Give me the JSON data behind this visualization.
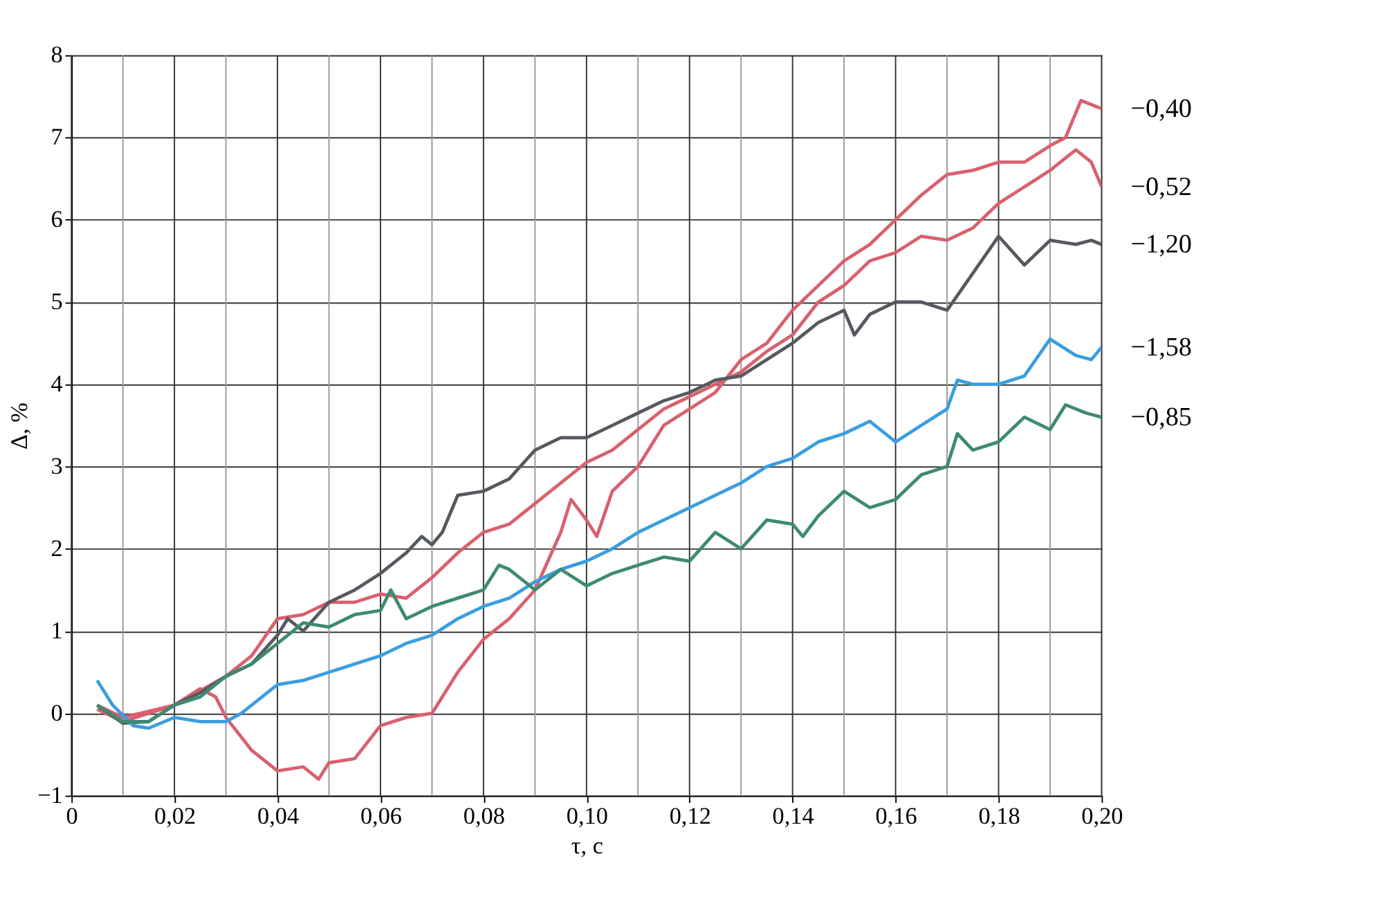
{
  "chart_data": {
    "type": "line",
    "xlabel": "τ, c",
    "ylabel": "Δ, %",
    "xlim": [
      0,
      0.2
    ],
    "ylim": [
      -1,
      8
    ],
    "xticks": [
      {
        "value": 0,
        "label": "0"
      },
      {
        "value": 0.01,
        "label": null
      },
      {
        "value": 0.02,
        "label": "0,02"
      },
      {
        "value": 0.03,
        "label": null
      },
      {
        "value": 0.04,
        "label": "0,04"
      },
      {
        "value": 0.05,
        "label": null
      },
      {
        "value": 0.06,
        "label": "0,06"
      },
      {
        "value": 0.07,
        "label": null
      },
      {
        "value": 0.08,
        "label": "0,08"
      },
      {
        "value": 0.09,
        "label": null
      },
      {
        "value": 0.1,
        "label": "0,10"
      },
      {
        "value": 0.11,
        "label": null
      },
      {
        "value": 0.12,
        "label": "0,12"
      },
      {
        "value": 0.13,
        "label": null
      },
      {
        "value": 0.14,
        "label": "0,14"
      },
      {
        "value": 0.15,
        "label": null
      },
      {
        "value": 0.16,
        "label": "0,16"
      },
      {
        "value": 0.17,
        "label": null
      },
      {
        "value": 0.18,
        "label": "0,18"
      },
      {
        "value": 0.19,
        "label": null
      },
      {
        "value": 0.2,
        "label": "0,20"
      }
    ],
    "yticks": [
      {
        "value": -1,
        "label": "−1"
      },
      0,
      1,
      2,
      3,
      4,
      5,
      6,
      7,
      8
    ],
    "grid": true,
    "legend": false,
    "marker": "none",
    "line_style": "solid",
    "series": [
      {
        "name": "−0,40",
        "color": "#d9606e",
        "x": [
          0.005,
          0.01,
          0.015,
          0.02,
          0.025,
          0.028,
          0.03,
          0.035,
          0.04,
          0.045,
          0.048,
          0.05,
          0.055,
          0.06,
          0.065,
          0.07,
          0.075,
          0.08,
          0.085,
          0.09,
          0.095,
          0.097,
          0.1,
          0.102,
          0.105,
          0.11,
          0.115,
          0.12,
          0.125,
          0.13,
          0.135,
          0.14,
          0.145,
          0.15,
          0.155,
          0.16,
          0.165,
          0.17,
          0.175,
          0.18,
          0.185,
          0.19,
          0.193,
          0.196,
          0.2
        ],
        "values": [
          0.05,
          -0.1,
          0.0,
          0.1,
          0.3,
          0.2,
          -0.05,
          -0.45,
          -0.7,
          -0.65,
          -0.8,
          -0.6,
          -0.55,
          -0.15,
          -0.05,
          0.0,
          0.5,
          0.9,
          1.15,
          1.5,
          2.2,
          2.6,
          2.35,
          2.15,
          2.7,
          3.0,
          3.5,
          3.7,
          3.9,
          4.3,
          4.5,
          4.9,
          5.2,
          5.5,
          5.7,
          6.0,
          6.3,
          6.55,
          6.6,
          6.7,
          6.7,
          6.9,
          7.0,
          7.45,
          7.35
        ]
      },
      {
        "name": "−0,52",
        "color": "#d9606e",
        "x": [
          0.005,
          0.01,
          0.02,
          0.03,
          0.035,
          0.04,
          0.045,
          0.05,
          0.055,
          0.06,
          0.065,
          0.07,
          0.075,
          0.08,
          0.085,
          0.09,
          0.095,
          0.1,
          0.105,
          0.11,
          0.115,
          0.12,
          0.125,
          0.13,
          0.135,
          0.14,
          0.145,
          0.15,
          0.155,
          0.16,
          0.165,
          0.17,
          0.175,
          0.18,
          0.185,
          0.19,
          0.195,
          0.198,
          0.2
        ],
        "values": [
          0.1,
          -0.05,
          0.1,
          0.45,
          0.7,
          1.15,
          1.2,
          1.35,
          1.35,
          1.45,
          1.4,
          1.65,
          1.95,
          2.2,
          2.3,
          2.55,
          2.8,
          3.05,
          3.2,
          3.45,
          3.7,
          3.85,
          4.0,
          4.15,
          4.4,
          4.6,
          5.0,
          5.2,
          5.5,
          5.6,
          5.8,
          5.75,
          5.9,
          6.2,
          6.4,
          6.6,
          6.85,
          6.7,
          6.4
        ]
      },
      {
        "name": "−1,20",
        "color": "#555a60",
        "x": [
          0.005,
          0.01,
          0.015,
          0.02,
          0.025,
          0.03,
          0.035,
          0.04,
          0.042,
          0.045,
          0.05,
          0.055,
          0.06,
          0.065,
          0.068,
          0.07,
          0.072,
          0.075,
          0.08,
          0.085,
          0.09,
          0.095,
          0.1,
          0.105,
          0.11,
          0.115,
          0.12,
          0.125,
          0.13,
          0.135,
          0.14,
          0.145,
          0.15,
          0.152,
          0.155,
          0.16,
          0.165,
          0.17,
          0.175,
          0.18,
          0.185,
          0.19,
          0.195,
          0.198,
          0.2
        ],
        "values": [
          0.1,
          -0.12,
          -0.1,
          0.1,
          0.25,
          0.45,
          0.6,
          0.95,
          1.15,
          1.0,
          1.35,
          1.5,
          1.7,
          1.95,
          2.15,
          2.05,
          2.2,
          2.65,
          2.7,
          2.85,
          3.2,
          3.35,
          3.35,
          3.5,
          3.65,
          3.8,
          3.9,
          4.05,
          4.1,
          4.3,
          4.5,
          4.75,
          4.9,
          4.6,
          4.85,
          5.0,
          5.0,
          4.9,
          5.35,
          5.8,
          5.45,
          5.75,
          5.7,
          5.75,
          5.7
        ]
      },
      {
        "name": "−1,58",
        "color": "#3a9ee0",
        "x": [
          0.005,
          0.008,
          0.012,
          0.015,
          0.02,
          0.025,
          0.03,
          0.033,
          0.04,
          0.045,
          0.05,
          0.055,
          0.06,
          0.065,
          0.07,
          0.075,
          0.08,
          0.085,
          0.09,
          0.095,
          0.1,
          0.105,
          0.11,
          0.115,
          0.12,
          0.125,
          0.13,
          0.135,
          0.14,
          0.145,
          0.15,
          0.155,
          0.16,
          0.165,
          0.17,
          0.172,
          0.175,
          0.18,
          0.185,
          0.19,
          0.195,
          0.198,
          0.2
        ],
        "values": [
          0.4,
          0.1,
          -0.15,
          -0.18,
          -0.05,
          -0.1,
          -0.1,
          0.0,
          0.35,
          0.4,
          0.5,
          0.6,
          0.7,
          0.85,
          0.95,
          1.15,
          1.3,
          1.4,
          1.6,
          1.75,
          1.85,
          2.0,
          2.2,
          2.35,
          2.5,
          2.65,
          2.8,
          3.0,
          3.1,
          3.3,
          3.4,
          3.55,
          3.3,
          3.5,
          3.7,
          4.05,
          4.0,
          4.0,
          4.1,
          4.55,
          4.35,
          4.3,
          4.45
        ]
      },
      {
        "name": "−0,85",
        "color": "#3d8a72",
        "x": [
          0.005,
          0.01,
          0.015,
          0.02,
          0.025,
          0.03,
          0.035,
          0.04,
          0.045,
          0.05,
          0.055,
          0.06,
          0.062,
          0.065,
          0.07,
          0.075,
          0.08,
          0.083,
          0.085,
          0.09,
          0.095,
          0.1,
          0.105,
          0.11,
          0.115,
          0.12,
          0.125,
          0.13,
          0.135,
          0.14,
          0.142,
          0.145,
          0.15,
          0.155,
          0.16,
          0.165,
          0.17,
          0.172,
          0.175,
          0.18,
          0.185,
          0.19,
          0.193,
          0.197,
          0.2
        ],
        "values": [
          0.1,
          -0.1,
          -0.1,
          0.1,
          0.2,
          0.45,
          0.6,
          0.85,
          1.1,
          1.05,
          1.2,
          1.25,
          1.5,
          1.15,
          1.3,
          1.4,
          1.5,
          1.8,
          1.75,
          1.5,
          1.75,
          1.55,
          1.7,
          1.8,
          1.9,
          1.85,
          2.2,
          2.0,
          2.35,
          2.3,
          2.15,
          2.4,
          2.7,
          2.5,
          2.6,
          2.9,
          3.0,
          3.4,
          3.2,
          3.3,
          3.6,
          3.45,
          3.75,
          3.65,
          3.6
        ]
      }
    ]
  }
}
